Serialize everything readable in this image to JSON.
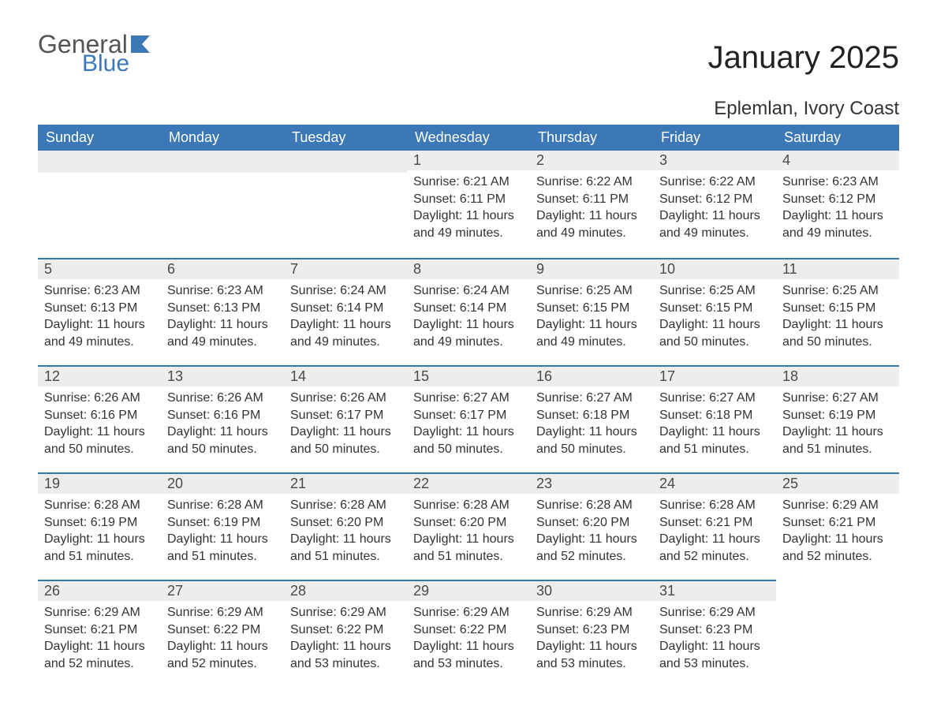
{
  "logo": {
    "text1": "General",
    "text2": "Blue",
    "flag_color": "#3b78b5"
  },
  "title": "January 2025",
  "location": "Eplemlan, Ivory Coast",
  "colors": {
    "header_bg": "#3b78b5",
    "header_text": "#ffffff",
    "daynum_bg": "#ededed",
    "row_border": "#3b78b5",
    "body_bg": "#ffffff",
    "text": "#333333"
  },
  "weekdays": [
    "Sunday",
    "Monday",
    "Tuesday",
    "Wednesday",
    "Thursday",
    "Friday",
    "Saturday"
  ],
  "layout": {
    "columns": 7,
    "rows": 5,
    "first_weekday_index": 3,
    "days_in_month": 31
  },
  "labels": {
    "sunrise": "Sunrise:",
    "sunset": "Sunset:",
    "daylight": "Daylight:"
  },
  "days": [
    {
      "n": 1,
      "sunrise": "6:21 AM",
      "sunset": "6:11 PM",
      "daylight": "11 hours and 49 minutes."
    },
    {
      "n": 2,
      "sunrise": "6:22 AM",
      "sunset": "6:11 PM",
      "daylight": "11 hours and 49 minutes."
    },
    {
      "n": 3,
      "sunrise": "6:22 AM",
      "sunset": "6:12 PM",
      "daylight": "11 hours and 49 minutes."
    },
    {
      "n": 4,
      "sunrise": "6:23 AM",
      "sunset": "6:12 PM",
      "daylight": "11 hours and 49 minutes."
    },
    {
      "n": 5,
      "sunrise": "6:23 AM",
      "sunset": "6:13 PM",
      "daylight": "11 hours and 49 minutes."
    },
    {
      "n": 6,
      "sunrise": "6:23 AM",
      "sunset": "6:13 PM",
      "daylight": "11 hours and 49 minutes."
    },
    {
      "n": 7,
      "sunrise": "6:24 AM",
      "sunset": "6:14 PM",
      "daylight": "11 hours and 49 minutes."
    },
    {
      "n": 8,
      "sunrise": "6:24 AM",
      "sunset": "6:14 PM",
      "daylight": "11 hours and 49 minutes."
    },
    {
      "n": 9,
      "sunrise": "6:25 AM",
      "sunset": "6:15 PM",
      "daylight": "11 hours and 49 minutes."
    },
    {
      "n": 10,
      "sunrise": "6:25 AM",
      "sunset": "6:15 PM",
      "daylight": "11 hours and 50 minutes."
    },
    {
      "n": 11,
      "sunrise": "6:25 AM",
      "sunset": "6:15 PM",
      "daylight": "11 hours and 50 minutes."
    },
    {
      "n": 12,
      "sunrise": "6:26 AM",
      "sunset": "6:16 PM",
      "daylight": "11 hours and 50 minutes."
    },
    {
      "n": 13,
      "sunrise": "6:26 AM",
      "sunset": "6:16 PM",
      "daylight": "11 hours and 50 minutes."
    },
    {
      "n": 14,
      "sunrise": "6:26 AM",
      "sunset": "6:17 PM",
      "daylight": "11 hours and 50 minutes."
    },
    {
      "n": 15,
      "sunrise": "6:27 AM",
      "sunset": "6:17 PM",
      "daylight": "11 hours and 50 minutes."
    },
    {
      "n": 16,
      "sunrise": "6:27 AM",
      "sunset": "6:18 PM",
      "daylight": "11 hours and 50 minutes."
    },
    {
      "n": 17,
      "sunrise": "6:27 AM",
      "sunset": "6:18 PM",
      "daylight": "11 hours and 51 minutes."
    },
    {
      "n": 18,
      "sunrise": "6:27 AM",
      "sunset": "6:19 PM",
      "daylight": "11 hours and 51 minutes."
    },
    {
      "n": 19,
      "sunrise": "6:28 AM",
      "sunset": "6:19 PM",
      "daylight": "11 hours and 51 minutes."
    },
    {
      "n": 20,
      "sunrise": "6:28 AM",
      "sunset": "6:19 PM",
      "daylight": "11 hours and 51 minutes."
    },
    {
      "n": 21,
      "sunrise": "6:28 AM",
      "sunset": "6:20 PM",
      "daylight": "11 hours and 51 minutes."
    },
    {
      "n": 22,
      "sunrise": "6:28 AM",
      "sunset": "6:20 PM",
      "daylight": "11 hours and 51 minutes."
    },
    {
      "n": 23,
      "sunrise": "6:28 AM",
      "sunset": "6:20 PM",
      "daylight": "11 hours and 52 minutes."
    },
    {
      "n": 24,
      "sunrise": "6:28 AM",
      "sunset": "6:21 PM",
      "daylight": "11 hours and 52 minutes."
    },
    {
      "n": 25,
      "sunrise": "6:29 AM",
      "sunset": "6:21 PM",
      "daylight": "11 hours and 52 minutes."
    },
    {
      "n": 26,
      "sunrise": "6:29 AM",
      "sunset": "6:21 PM",
      "daylight": "11 hours and 52 minutes."
    },
    {
      "n": 27,
      "sunrise": "6:29 AM",
      "sunset": "6:22 PM",
      "daylight": "11 hours and 52 minutes."
    },
    {
      "n": 28,
      "sunrise": "6:29 AM",
      "sunset": "6:22 PM",
      "daylight": "11 hours and 53 minutes."
    },
    {
      "n": 29,
      "sunrise": "6:29 AM",
      "sunset": "6:22 PM",
      "daylight": "11 hours and 53 minutes."
    },
    {
      "n": 30,
      "sunrise": "6:29 AM",
      "sunset": "6:23 PM",
      "daylight": "11 hours and 53 minutes."
    },
    {
      "n": 31,
      "sunrise": "6:29 AM",
      "sunset": "6:23 PM",
      "daylight": "11 hours and 53 minutes."
    }
  ]
}
